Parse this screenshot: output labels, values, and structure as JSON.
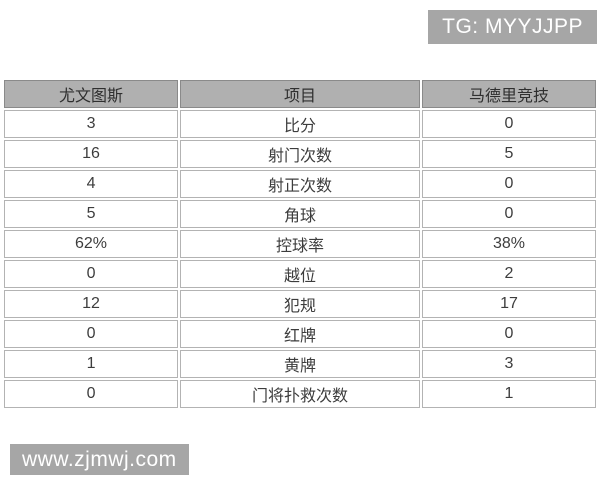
{
  "chart_data": {
    "type": "table",
    "columns": [
      "尤文图斯",
      "项目",
      "马德里竞技"
    ],
    "rows": [
      [
        "3",
        "比分",
        "0"
      ],
      [
        "16",
        "射门次数",
        "5"
      ],
      [
        "4",
        "射正次数",
        "0"
      ],
      [
        "5",
        "角球",
        "0"
      ],
      [
        "62%",
        "控球率",
        "38%"
      ],
      [
        "0",
        "越位",
        "2"
      ],
      [
        "12",
        "犯规",
        "17"
      ],
      [
        "0",
        "红牌",
        "0"
      ],
      [
        "1",
        "黄牌",
        "3"
      ],
      [
        "0",
        "门将扑救次数",
        "1"
      ]
    ]
  },
  "badges": {
    "telegram": "TG: MYYJJPP",
    "watermark": "www.zjmwj.com"
  },
  "colors": {
    "badge_bg": "#a6a6a6",
    "header_bg": "#b0b0b0",
    "cell_border": "#b3b3b3",
    "header_text": "#2f2f2f",
    "cell_text": "#3d3d3d"
  }
}
